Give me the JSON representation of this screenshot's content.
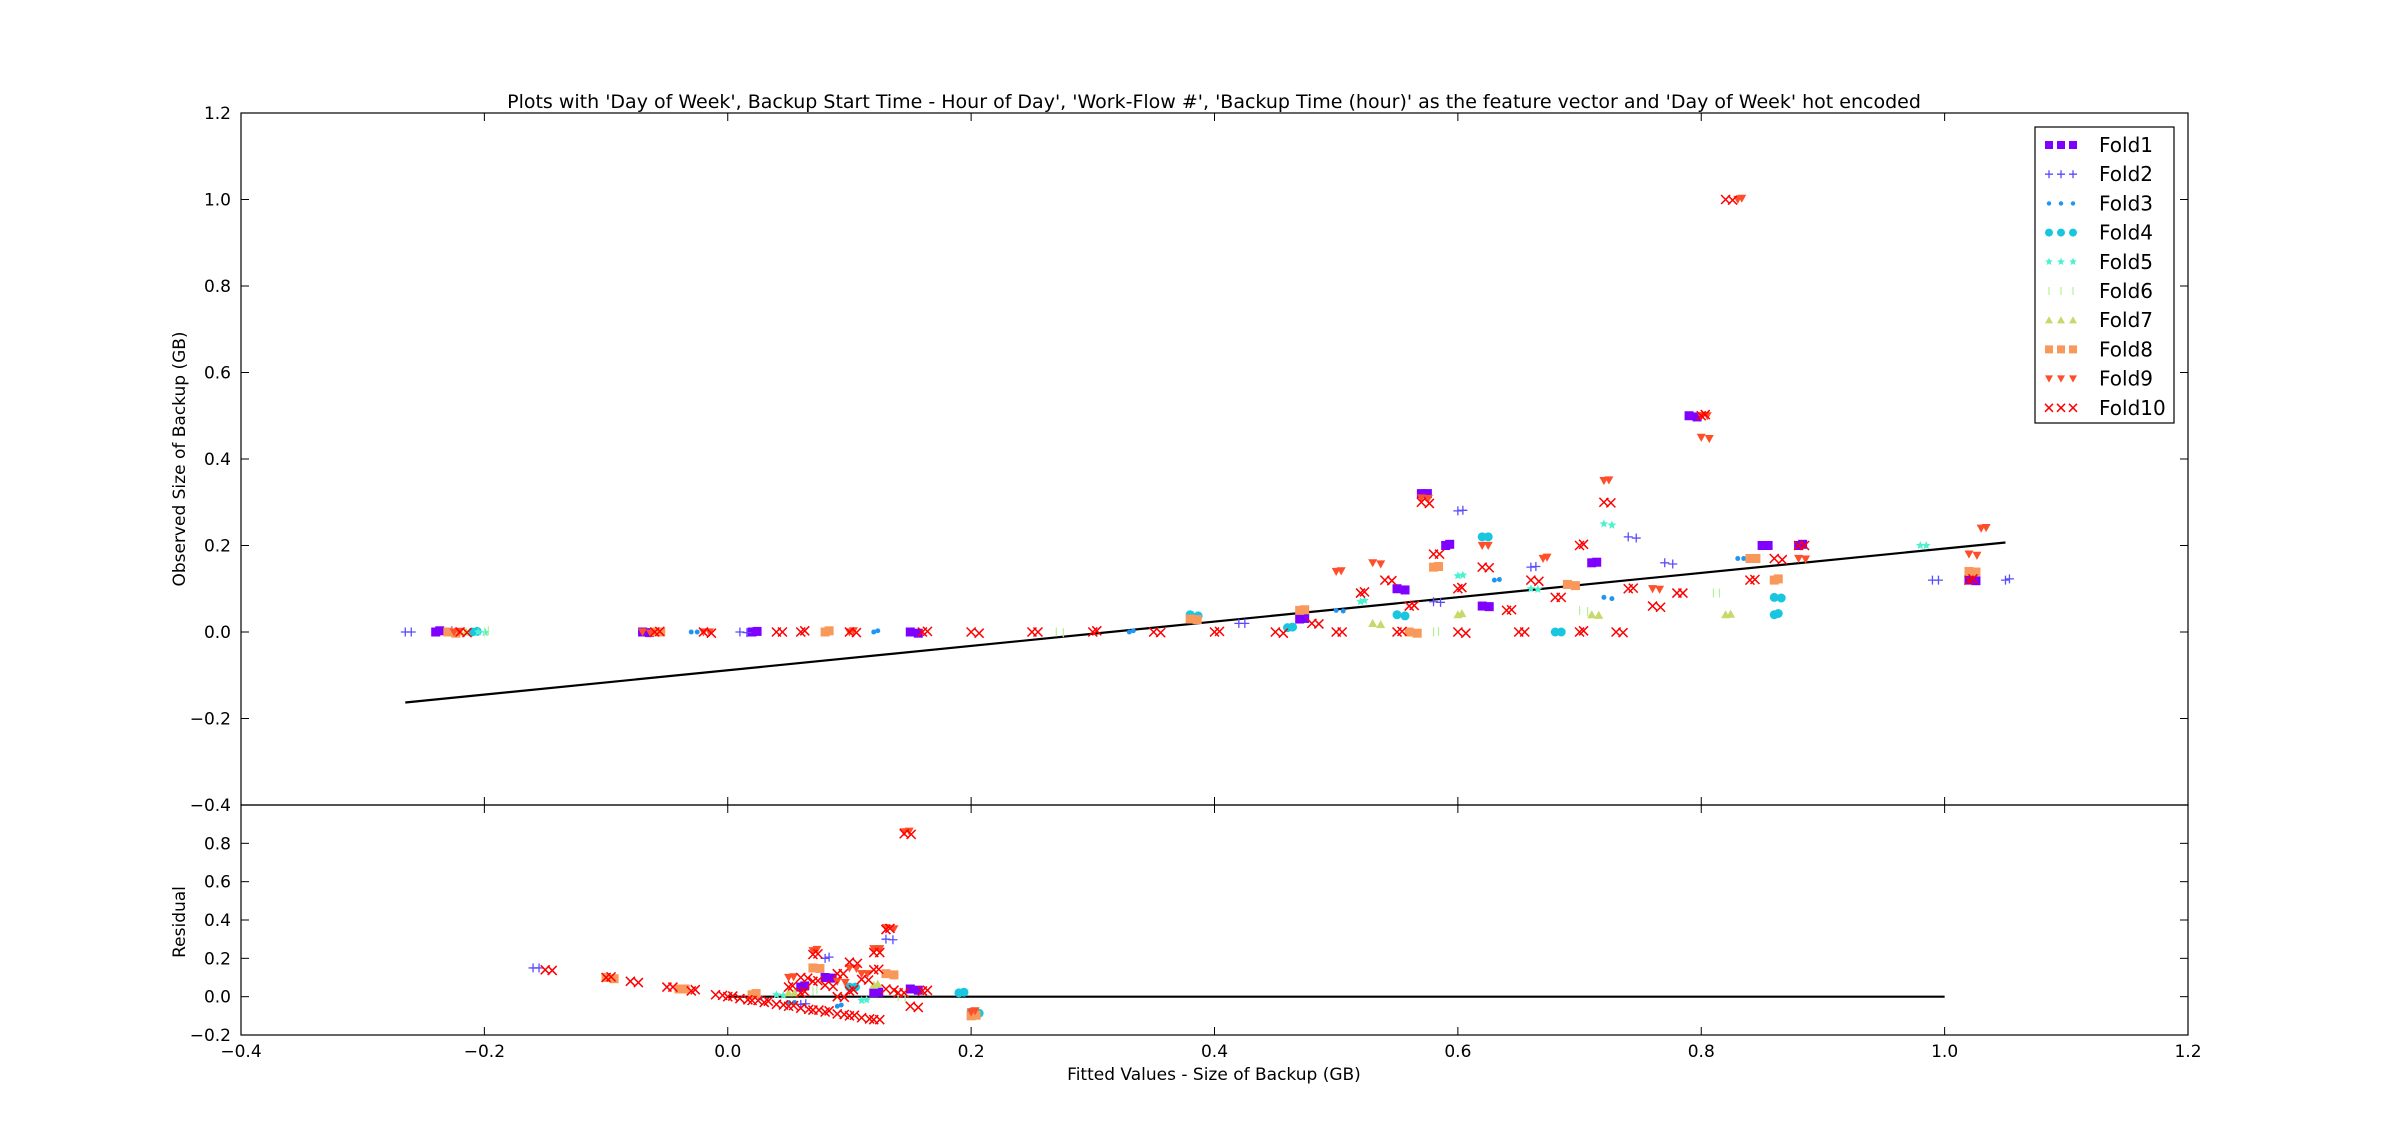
{
  "chart_data": [
    {
      "type": "scatter",
      "title": "Plots with 'Day of Week', Backup Start Time - Hour of Day', 'Work-Flow #', 'Backup Time (hour)' as the feature vector and 'Day of Week' hot encoded",
      "xlabel": "",
      "ylabel": "Observed Size of Backup (GB)",
      "xlim": [
        -0.4,
        1.2
      ],
      "ylim": [
        -0.4,
        1.2
      ],
      "xticks": [
        "−0.4",
        "−0.2",
        "0.0",
        "0.2",
        "0.4",
        "0.6",
        "0.8",
        "1.0",
        "1.2"
      ],
      "yticks": [
        "−0.4",
        "−0.2",
        "0.0",
        "0.2",
        "0.4",
        "0.6",
        "0.8",
        "1.0",
        "1.2"
      ],
      "grid": false,
      "legend_position": "top-right",
      "fit_line": {
        "x": [
          -0.265,
          1.05
        ],
        "y": [
          -0.163,
          0.207
        ]
      },
      "series": [
        {
          "name": "Fold1",
          "marker": "square",
          "color": "#7f00ff",
          "points": [
            [
              -0.24,
              0
            ],
            [
              -0.07,
              0
            ],
            [
              0.02,
              0
            ],
            [
              0.15,
              0
            ],
            [
              0.57,
              0.32
            ],
            [
              0.59,
              0.2
            ],
            [
              0.62,
              0.06
            ],
            [
              0.71,
              0.16
            ],
            [
              0.79,
              0.5
            ],
            [
              0.85,
              0.2
            ],
            [
              0.88,
              0.2
            ],
            [
              1.02,
              0.12
            ],
            [
              0.47,
              0.03
            ],
            [
              0.55,
              0.1
            ]
          ]
        },
        {
          "name": "Fold2",
          "marker": "plus",
          "color": "#5a4dfd",
          "points": [
            [
              -0.265,
              0
            ],
            [
              -0.23,
              0
            ],
            [
              0.01,
              0
            ],
            [
              0.6,
              0.28
            ],
            [
              0.77,
              0.16
            ],
            [
              0.99,
              0.12
            ],
            [
              1.05,
              0.12
            ],
            [
              0.58,
              0.07
            ],
            [
              0.66,
              0.15
            ],
            [
              0.74,
              0.22
            ],
            [
              0.42,
              0.02
            ]
          ]
        },
        {
          "name": "Fold3",
          "marker": "point",
          "color": "#1e95f2",
          "points": [
            [
              -0.22,
              0
            ],
            [
              -0.03,
              0
            ],
            [
              0.12,
              0
            ],
            [
              0.5,
              0.05
            ],
            [
              0.63,
              0.12
            ],
            [
              0.72,
              0.08
            ],
            [
              0.83,
              0.17
            ],
            [
              0.33,
              0
            ]
          ]
        },
        {
          "name": "Fold4",
          "marker": "circle",
          "color": "#19c6e0",
          "points": [
            [
              -0.21,
              0
            ],
            [
              0.38,
              0.04
            ],
            [
              0.62,
              0.22
            ],
            [
              0.86,
              0.04
            ],
            [
              0.86,
              0.08
            ],
            [
              0.46,
              0.01
            ],
            [
              0.55,
              0.04
            ],
            [
              0.68,
              0.0
            ]
          ]
        },
        {
          "name": "Fold5",
          "marker": "star",
          "color": "#4cf2ce",
          "points": [
            [
              -0.205,
              0
            ],
            [
              0.6,
              0.13
            ],
            [
              0.72,
              0.25
            ],
            [
              0.98,
              0.2
            ],
            [
              0.52,
              0.07
            ],
            [
              0.66,
              0.1
            ]
          ]
        },
        {
          "name": "Fold6",
          "marker": "vline",
          "color": "#b2f296",
          "points": [
            [
              -0.2,
              0
            ],
            [
              0.27,
              0
            ],
            [
              0.58,
              0.0
            ],
            [
              0.7,
              0.05
            ],
            [
              0.81,
              0.09
            ]
          ]
        },
        {
          "name": "Fold7",
          "marker": "triangle-up",
          "color": "#c8d96b",
          "points": [
            [
              -0.22,
              0
            ],
            [
              0.6,
              0.04
            ],
            [
              0.71,
              0.04
            ],
            [
              0.82,
              0.04
            ],
            [
              0.53,
              0.02
            ]
          ]
        },
        {
          "name": "Fold8",
          "marker": "square",
          "color": "#f8985a",
          "points": [
            [
              -0.23,
              0
            ],
            [
              -0.06,
              0
            ],
            [
              0.08,
              0
            ],
            [
              0.38,
              0.03
            ],
            [
              0.58,
              0.15
            ],
            [
              0.69,
              0.11
            ],
            [
              0.84,
              0.17
            ],
            [
              0.86,
              0.12
            ],
            [
              1.02,
              0.14
            ],
            [
              0.47,
              0.05
            ],
            [
              0.56,
              0.0
            ]
          ]
        },
        {
          "name": "Fold9",
          "marker": "triangle-down",
          "color": "#ff4f2a",
          "points": [
            [
              -0.225,
              0
            ],
            [
              -0.07,
              0
            ],
            [
              -0.02,
              0
            ],
            [
              0.1,
              0
            ],
            [
              0.57,
              0.31
            ],
            [
              0.72,
              0.35
            ],
            [
              0.8,
              0.45
            ],
            [
              0.8,
              0.5
            ],
            [
              0.83,
              1.0
            ],
            [
              0.88,
              0.17
            ],
            [
              1.03,
              0.24
            ],
            [
              1.02,
              0.18
            ],
            [
              0.62,
              0.2
            ],
            [
              0.67,
              0.17
            ],
            [
              0.76,
              0.1
            ],
            [
              0.5,
              0.14
            ],
            [
              0.53,
              0.16
            ]
          ]
        },
        {
          "name": "Fold10",
          "marker": "x",
          "color": "#ff0000",
          "points": [
            [
              -0.22,
              0
            ],
            [
              -0.06,
              0
            ],
            [
              -0.02,
              0
            ],
            [
              0.04,
              0
            ],
            [
              0.06,
              0
            ],
            [
              0.1,
              0
            ],
            [
              0.16,
              0
            ],
            [
              0.2,
              0
            ],
            [
              0.25,
              0
            ],
            [
              0.3,
              0
            ],
            [
              0.35,
              0
            ],
            [
              0.4,
              0
            ],
            [
              0.45,
              0
            ],
            [
              0.5,
              0
            ],
            [
              0.52,
              0.09
            ],
            [
              0.54,
              0.12
            ],
            [
              0.56,
              0.06
            ],
            [
              0.57,
              0.3
            ],
            [
              0.58,
              0.18
            ],
            [
              0.6,
              0.1
            ],
            [
              0.62,
              0.15
            ],
            [
              0.64,
              0.05
            ],
            [
              0.66,
              0.12
            ],
            [
              0.68,
              0.08
            ],
            [
              0.7,
              0.2
            ],
            [
              0.72,
              0.3
            ],
            [
              0.74,
              0.1
            ],
            [
              0.76,
              0.06
            ],
            [
              0.78,
              0.09
            ],
            [
              0.8,
              0.5
            ],
            [
              0.82,
              1.0
            ],
            [
              0.84,
              0.12
            ],
            [
              0.86,
              0.17
            ],
            [
              0.88,
              0.2
            ],
            [
              1.02,
              0.12
            ],
            [
              0.48,
              0.02
            ],
            [
              0.55,
              0.0
            ],
            [
              0.6,
              0.0
            ],
            [
              0.65,
              0.0
            ],
            [
              0.7,
              0.0
            ],
            [
              0.73,
              0.0
            ]
          ]
        }
      ]
    },
    {
      "type": "scatter",
      "title": "",
      "xlabel": "Fitted Values - Size of Backup (GB)",
      "ylabel": "Residual",
      "xlim": [
        -0.4,
        1.2
      ],
      "ylim": [
        -0.2,
        1.0
      ],
      "xticks": [
        "−0.4",
        "−0.2",
        "0.0",
        "0.2",
        "0.4",
        "0.6",
        "0.8",
        "1.0",
        "1.2"
      ],
      "yticks": [
        "−0.2",
        "0.0",
        "0.2",
        "0.4",
        "0.6",
        "0.8"
      ],
      "grid": false,
      "zero_line": {
        "x": [
          0.0,
          1.0
        ],
        "y": [
          0,
          0
        ]
      },
      "series": [
        {
          "name": "Fold1",
          "marker": "square",
          "color": "#7f00ff",
          "points": [
            [
              0.06,
              0.05
            ],
            [
              0.08,
              0.1
            ],
            [
              0.12,
              0.02
            ],
            [
              0.15,
              0.04
            ]
          ]
        },
        {
          "name": "Fold2",
          "marker": "plus",
          "color": "#5a4dfd",
          "points": [
            [
              -0.16,
              0.15
            ],
            [
              0.08,
              0.2
            ],
            [
              0.13,
              0.3
            ],
            [
              0.06,
              -0.04
            ]
          ]
        },
        {
          "name": "Fold3",
          "marker": "point",
          "color": "#1e95f2",
          "points": [
            [
              0.02,
              0.0
            ],
            [
              0.05,
              -0.03
            ],
            [
              0.09,
              -0.05
            ]
          ]
        },
        {
          "name": "Fold4",
          "marker": "circle",
          "color": "#19c6e0",
          "points": [
            [
              0.19,
              0.02
            ],
            [
              0.2,
              -0.08
            ],
            [
              0.1,
              0.05
            ]
          ]
        },
        {
          "name": "Fold5",
          "marker": "star",
          "color": "#4cf2ce",
          "points": [
            [
              0.04,
              0.01
            ],
            [
              0.11,
              -0.02
            ]
          ]
        },
        {
          "name": "Fold6",
          "marker": "vline",
          "color": "#b2f296",
          "points": [
            [
              0.07,
              0.03
            ],
            [
              0.14,
              0.0
            ]
          ]
        },
        {
          "name": "Fold7",
          "marker": "triangle-up",
          "color": "#c8d96b",
          "points": [
            [
              0.05,
              0.02
            ],
            [
              0.12,
              0.06
            ]
          ]
        },
        {
          "name": "Fold8",
          "marker": "square",
          "color": "#f8985a",
          "points": [
            [
              -0.1,
              0.1
            ],
            [
              -0.04,
              0.04
            ],
            [
              0.02,
              0.01
            ],
            [
              0.07,
              0.15
            ],
            [
              0.2,
              -0.1
            ],
            [
              0.13,
              0.12
            ]
          ]
        },
        {
          "name": "Fold9",
          "marker": "triangle-down",
          "color": "#ff4f2a",
          "points": [
            [
              0.145,
              0.86
            ],
            [
              0.13,
              0.36
            ],
            [
              0.12,
              0.25
            ],
            [
              0.07,
              0.24
            ],
            [
              0.1,
              0.15
            ],
            [
              0.05,
              0.1
            ],
            [
              0.09,
              0.08
            ],
            [
              0.11,
              0.12
            ],
            [
              0.2,
              -0.08
            ]
          ]
        },
        {
          "name": "Fold10",
          "marker": "x",
          "color": "#ff0000",
          "points": [
            [
              -0.15,
              0.14
            ],
            [
              -0.1,
              0.1
            ],
            [
              -0.08,
              0.08
            ],
            [
              -0.05,
              0.05
            ],
            [
              -0.03,
              0.03
            ],
            [
              -0.01,
              0.01
            ],
            [
              0.0,
              0.0
            ],
            [
              0.01,
              -0.01
            ],
            [
              0.02,
              -0.02
            ],
            [
              0.03,
              -0.03
            ],
            [
              0.04,
              -0.04
            ],
            [
              0.05,
              -0.05
            ],
            [
              0.06,
              -0.06
            ],
            [
              0.07,
              -0.07
            ],
            [
              0.08,
              -0.08
            ],
            [
              0.09,
              -0.09
            ],
            [
              0.1,
              -0.1
            ],
            [
              0.11,
              -0.11
            ],
            [
              0.12,
              -0.12
            ],
            [
              0.05,
              0.05
            ],
            [
              0.06,
              0.1
            ],
            [
              0.07,
              0.08
            ],
            [
              0.08,
              0.06
            ],
            [
              0.09,
              0.12
            ],
            [
              0.1,
              0.03
            ],
            [
              0.11,
              0.09
            ],
            [
              0.12,
              0.14
            ],
            [
              0.13,
              0.04
            ],
            [
              0.14,
              0.02
            ],
            [
              0.13,
              0.35
            ],
            [
              0.145,
              0.85
            ],
            [
              0.07,
              0.22
            ],
            [
              0.1,
              0.18
            ],
            [
              0.12,
              0.23
            ],
            [
              0.06,
              0.02
            ],
            [
              0.09,
              0.0
            ],
            [
              0.16,
              0.03
            ],
            [
              0.15,
              -0.05
            ]
          ]
        }
      ]
    }
  ]
}
